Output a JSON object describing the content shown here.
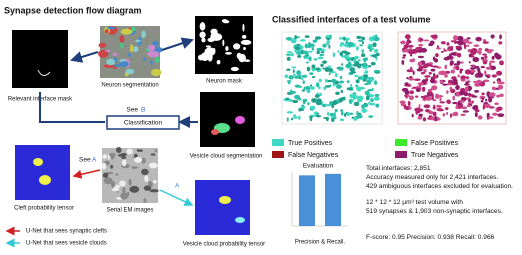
{
  "left_panel": {
    "title": "Synapse detection flow diagram",
    "images": {
      "relevant_interface_mask": "Relevant interface mask",
      "neuron_segmentation": "Neuron segmentation",
      "neuron_mask": "Neuron mask",
      "vesicle_cloud_segmentation": "Vesicle cloud segmentation",
      "cleft_probability_tensor": "Cleft probability tensor",
      "serial_em_images": "Serial EM images",
      "vesicle_cloud_probability_tensor": "Vesicle cloud probability tensor"
    },
    "classification": "Classification",
    "see_b": {
      "text": "See",
      "letter": "B"
    },
    "see_a_left": {
      "text": "See",
      "letter": "A"
    },
    "label_a": "A",
    "legend": [
      "U-Net that sees synaptic clefts",
      "U-Net that sees vesicle clouds"
    ]
  },
  "right_panel": {
    "title": "Classified interfaces of a test volume",
    "legend": [
      "True Positives",
      "False Negatives",
      "False Positives",
      "True Negatives"
    ],
    "evaluation_chart": {
      "title": "Evaluation",
      "values": [
        0.938,
        0.966
      ],
      "ylim": [
        0,
        1
      ],
      "caption": "Precision & Recall."
    },
    "stats": [
      "Total interfaces: 2,851",
      "Accuracy measured only for 2,421 interfaces.",
      "429 ambiguous interfaces excluded for evaluation.",
      "12 * 12 * 12 μm³ test volume with",
      "519 synapses & 1,903 non-synaptic interfaces.",
      "F-score: 0.95   Precision: 0.938   Recall: 0.966"
    ]
  }
}
